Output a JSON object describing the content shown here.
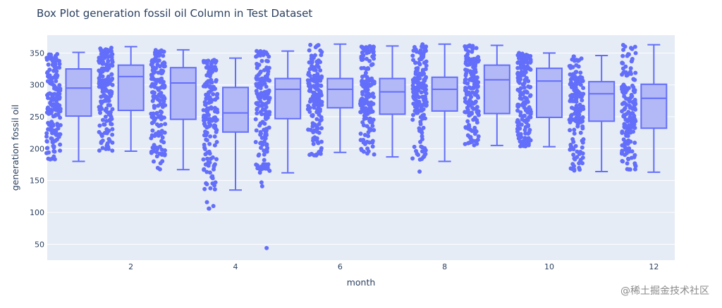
{
  "title": "Box Plot generation fossil oil Column in Test Dataset",
  "watermark": "@稀土掘金技术社区",
  "chart_data": {
    "type": "box",
    "title": "Box Plot generation fossil oil Column in Test Dataset",
    "xlabel": "month",
    "ylabel": "generation fossil oil",
    "xticks": [
      2,
      4,
      6,
      8,
      10,
      12
    ],
    "yticks": [
      50,
      100,
      150,
      200,
      250,
      300,
      350
    ],
    "xlim": [
      0.4,
      12.4
    ],
    "ylim": [
      25,
      378
    ],
    "points_shown": "all",
    "grid": true,
    "colors": {
      "box_line": "#636efa",
      "box_fill": "#b3b8f7",
      "plot_bg": "#e5ecf6"
    },
    "boxes": [
      {
        "month": 1,
        "min": 180,
        "q1": 251,
        "median": 295,
        "q3": 325,
        "max": 351,
        "points_min": 182,
        "points_max": 350,
        "outliers": []
      },
      {
        "month": 2,
        "min": 196,
        "q1": 260,
        "median": 313,
        "q3": 331,
        "max": 360,
        "points_min": 196,
        "points_max": 360,
        "outliers": []
      },
      {
        "month": 3,
        "min": 167,
        "q1": 246,
        "median": 303,
        "q3": 327,
        "max": 355,
        "points_min": 167,
        "points_max": 355,
        "outliers": []
      },
      {
        "month": 4,
        "min": 135,
        "q1": 226,
        "median": 256,
        "q3": 296,
        "max": 342,
        "points_min": 135,
        "points_max": 340,
        "outliers": [
          116,
          110,
          106,
          106
        ]
      },
      {
        "month": 5,
        "min": 162,
        "q1": 247,
        "median": 293,
        "q3": 310,
        "max": 353,
        "points_min": 162,
        "points_max": 353,
        "outliers": [
          147,
          141,
          44
        ]
      },
      {
        "month": 6,
        "min": 194,
        "q1": 264,
        "median": 293,
        "q3": 310,
        "max": 364,
        "points_min": 189,
        "points_max": 364,
        "outliers": []
      },
      {
        "month": 7,
        "min": 187,
        "q1": 254,
        "median": 289,
        "q3": 310,
        "max": 361,
        "points_min": 187,
        "points_max": 361,
        "outliers": []
      },
      {
        "month": 8,
        "min": 180,
        "q1": 259,
        "median": 293,
        "q3": 312,
        "max": 364,
        "points_min": 180,
        "points_max": 364,
        "outliers": [
          164
        ]
      },
      {
        "month": 9,
        "min": 205,
        "q1": 255,
        "median": 308,
        "q3": 331,
        "max": 362,
        "points_min": 205,
        "points_max": 362,
        "outliers": []
      },
      {
        "month": 10,
        "min": 203,
        "q1": 249,
        "median": 306,
        "q3": 326,
        "max": 350,
        "points_min": 203,
        "points_max": 350,
        "outliers": []
      },
      {
        "month": 11,
        "min": 164,
        "q1": 243,
        "median": 286,
        "q3": 305,
        "max": 346,
        "points_min": 164,
        "points_max": 346,
        "outliers": []
      },
      {
        "month": 12,
        "min": 163,
        "q1": 232,
        "median": 279,
        "q3": 301,
        "max": 363,
        "points_min": 163,
        "points_max": 363,
        "outliers": []
      }
    ]
  }
}
